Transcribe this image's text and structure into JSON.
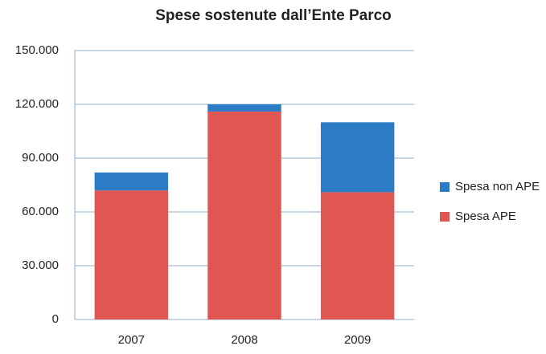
{
  "chart_data": {
    "type": "stacked_bar",
    "title": "Spese sostenute dall’Ente Parco",
    "categories": [
      "2007",
      "2008",
      "2009"
    ],
    "series": [
      {
        "name": "Spesa APE",
        "color": "#e05652",
        "values": [
          72000,
          116000,
          71000
        ]
      },
      {
        "name": "Spesa non APE",
        "color": "#2b7cc5",
        "values": [
          10000,
          4000,
          39000
        ]
      }
    ],
    "ylim": [
      0,
      150000
    ],
    "yticks": [
      0,
      {
        "value": 30000,
        "label": "30.000"
      },
      {
        "value": 60000,
        "label": "60.000"
      },
      {
        "value": 90000,
        "label": "90.000"
      },
      {
        "value": 120000,
        "label": "120.000"
      },
      {
        "value": 150000,
        "label": "150.000"
      }
    ],
    "grid": true,
    "legend": "right"
  }
}
